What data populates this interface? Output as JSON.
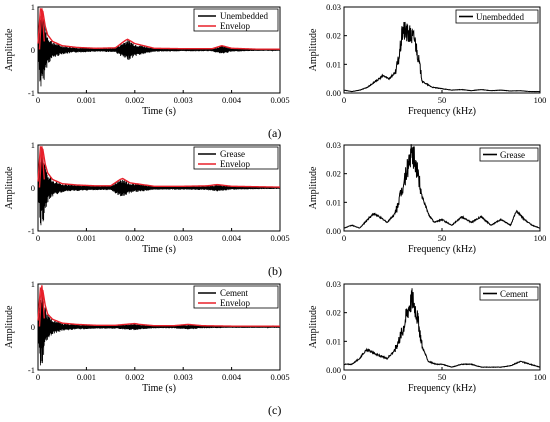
{
  "captions": [
    "(a)",
    "(b)",
    "(c)"
  ],
  "colors": {
    "signal": "#000000",
    "envelope": "#e8202a",
    "axis": "#000000"
  },
  "chart_data": [
    {
      "type": "line",
      "panel": "a-time",
      "xlabel": "Time (s)",
      "ylabel": "Amplitude",
      "xlim": [
        0,
        0.005
      ],
      "ylim": [
        -1,
        1
      ],
      "xticks": [
        "0",
        "0.001",
        "0.002",
        "0.003",
        "0.004",
        "0.005"
      ],
      "yticks": [
        "-1",
        "0",
        "1"
      ],
      "legend": {
        "placement": "top-right"
      },
      "series": [
        {
          "name": "Unembedded",
          "role": "signal",
          "x": [
            0,
            5e-05,
            0.0001,
            0.00015,
            0.0002,
            0.0003,
            0.0005,
            0.0008,
            0.0012,
            0.0016,
            0.0018,
            0.00185,
            0.002,
            0.0024,
            0.003,
            0.0036,
            0.0038,
            0.004,
            0.0045,
            0.005
          ],
          "y": [
            0.15,
            0.95,
            0.9,
            0.55,
            0.35,
            0.2,
            0.1,
            0.06,
            0.04,
            0.05,
            0.22,
            0.25,
            0.15,
            0.04,
            0.03,
            0.03,
            0.1,
            0.04,
            0.02,
            0.02
          ]
        },
        {
          "name": "Envelop",
          "role": "envelope",
          "x": [
            0,
            5e-05,
            0.0001,
            0.00015,
            0.0002,
            0.0003,
            0.0005,
            0.0008,
            0.0012,
            0.0016,
            0.0018,
            0.00185,
            0.002,
            0.0024,
            0.003,
            0.0036,
            0.0038,
            0.004,
            0.0045,
            0.005
          ],
          "y": [
            0.15,
            0.95,
            0.9,
            0.55,
            0.35,
            0.2,
            0.1,
            0.06,
            0.04,
            0.05,
            0.22,
            0.25,
            0.15,
            0.04,
            0.03,
            0.03,
            0.1,
            0.04,
            0.02,
            0.02
          ]
        }
      ]
    },
    {
      "type": "line",
      "panel": "a-freq",
      "xlabel": "Frequency (kHz)",
      "ylabel": "Amplitude",
      "xlim": [
        0,
        100
      ],
      "ylim": [
        0,
        0.03
      ],
      "xticks": [
        "0",
        "50",
        "100"
      ],
      "yticks": [
        "0.00",
        "0.01",
        "0.02",
        "0.03"
      ],
      "legend": {
        "placement": "top-right"
      },
      "series": [
        {
          "name": "Unembedded",
          "x": [
            0,
            4,
            8,
            12,
            16,
            20,
            23,
            26,
            28,
            30,
            32,
            34,
            36,
            38,
            40,
            45,
            50,
            55,
            60,
            65,
            70,
            75,
            80,
            85,
            90,
            95,
            100
          ],
          "y": [
            0.001,
            0.0005,
            0.001,
            0.002,
            0.004,
            0.006,
            0.005,
            0.007,
            0.012,
            0.022,
            0.021,
            0.02,
            0.019,
            0.012,
            0.004,
            0.002,
            0.0015,
            0.001,
            0.0012,
            0.0008,
            0.0012,
            0.0008,
            0.001,
            0.0007,
            0.0008,
            0.0005,
            0.0005
          ]
        }
      ]
    },
    {
      "type": "line",
      "panel": "b-time",
      "xlabel": "Time (s)",
      "ylabel": "Amplitude",
      "xlim": [
        0,
        0.005
      ],
      "ylim": [
        -1,
        1
      ],
      "xticks": [
        "0",
        "0.001",
        "0.002",
        "0.003",
        "0.004",
        "0.005"
      ],
      "yticks": [
        "-1",
        "0",
        "1"
      ],
      "legend": {
        "placement": "top-right"
      },
      "series": [
        {
          "name": "Grease",
          "role": "signal",
          "x": [
            0,
            5e-05,
            0.0001,
            0.00015,
            0.0002,
            0.0003,
            0.0005,
            0.0008,
            0.0012,
            0.0015,
            0.0017,
            0.00175,
            0.0019,
            0.0024,
            0.003,
            0.0035,
            0.0037,
            0.004,
            0.0045,
            0.005
          ],
          "y": [
            0.15,
            0.95,
            0.9,
            0.55,
            0.35,
            0.2,
            0.1,
            0.07,
            0.05,
            0.05,
            0.2,
            0.22,
            0.12,
            0.04,
            0.04,
            0.05,
            0.08,
            0.04,
            0.03,
            0.02
          ]
        },
        {
          "name": "Envelop",
          "role": "envelope",
          "x": [
            0,
            5e-05,
            0.0001,
            0.00015,
            0.0002,
            0.0003,
            0.0005,
            0.0008,
            0.0012,
            0.0015,
            0.0017,
            0.00175,
            0.0019,
            0.0024,
            0.003,
            0.0035,
            0.0037,
            0.004,
            0.0045,
            0.005
          ],
          "y": [
            0.15,
            0.95,
            0.9,
            0.55,
            0.35,
            0.2,
            0.1,
            0.07,
            0.05,
            0.05,
            0.2,
            0.22,
            0.12,
            0.04,
            0.04,
            0.05,
            0.08,
            0.04,
            0.03,
            0.02
          ]
        }
      ]
    },
    {
      "type": "line",
      "panel": "b-freq",
      "xlabel": "Frequency (kHz)",
      "ylabel": "Amplitude",
      "xlim": [
        0,
        100
      ],
      "ylim": [
        0,
        0.03
      ],
      "xticks": [
        "0",
        "50",
        "100"
      ],
      "yticks": [
        "0.00",
        "0.01",
        "0.02",
        "0.03"
      ],
      "legend": {
        "placement": "top-right"
      },
      "series": [
        {
          "name": "Grease",
          "x": [
            0,
            4,
            8,
            12,
            15,
            18,
            22,
            26,
            30,
            33,
            35,
            37,
            40,
            43,
            46,
            50,
            55,
            60,
            65,
            70,
            75,
            80,
            85,
            88,
            92,
            96,
            100
          ],
          "y": [
            0.001,
            0.002,
            0.001,
            0.004,
            0.006,
            0.005,
            0.003,
            0.006,
            0.015,
            0.024,
            0.027,
            0.022,
            0.012,
            0.006,
            0.003,
            0.004,
            0.002,
            0.005,
            0.003,
            0.005,
            0.002,
            0.004,
            0.002,
            0.007,
            0.004,
            0.002,
            0.001
          ]
        }
      ]
    },
    {
      "type": "line",
      "panel": "c-time",
      "xlabel": "Time (s)",
      "ylabel": "Amplitude",
      "xlim": [
        0,
        0.005
      ],
      "ylim": [
        -1,
        1
      ],
      "xticks": [
        "0",
        "0.001",
        "0.002",
        "0.003",
        "0.004",
        "0.005"
      ],
      "yticks": [
        "-1",
        "0",
        "1"
      ],
      "legend": {
        "placement": "top-right"
      },
      "series": [
        {
          "name": "Cement",
          "role": "signal",
          "x": [
            0,
            5e-05,
            0.0001,
            0.00015,
            0.0002,
            0.0003,
            0.0005,
            0.0008,
            0.0012,
            0.0016,
            0.0019,
            0.002,
            0.0021,
            0.0024,
            0.0028,
            0.0031,
            0.0034,
            0.004,
            0.0045,
            0.005
          ],
          "y": [
            0.15,
            0.9,
            0.85,
            0.5,
            0.3,
            0.18,
            0.09,
            0.06,
            0.04,
            0.04,
            0.07,
            0.08,
            0.06,
            0.03,
            0.03,
            0.06,
            0.03,
            0.02,
            0.02,
            0.02
          ]
        },
        {
          "name": "Envelop",
          "role": "envelope",
          "x": [
            0,
            5e-05,
            0.0001,
            0.00015,
            0.0002,
            0.0003,
            0.0005,
            0.0008,
            0.0012,
            0.0016,
            0.0019,
            0.002,
            0.0021,
            0.0024,
            0.0028,
            0.0031,
            0.0034,
            0.004,
            0.0045,
            0.005
          ],
          "y": [
            0.15,
            0.9,
            0.85,
            0.5,
            0.3,
            0.18,
            0.09,
            0.06,
            0.04,
            0.04,
            0.07,
            0.08,
            0.06,
            0.03,
            0.03,
            0.06,
            0.03,
            0.02,
            0.02,
            0.02
          ]
        }
      ]
    },
    {
      "type": "line",
      "panel": "c-freq",
      "xlabel": "Frequency (kHz)",
      "ylabel": "Amplitude",
      "xlim": [
        0,
        100
      ],
      "ylim": [
        0,
        0.03
      ],
      "xticks": [
        "0",
        "50",
        "100"
      ],
      "yticks": [
        "0.00",
        "0.01",
        "0.02",
        "0.03"
      ],
      "legend": {
        "placement": "top-right"
      },
      "series": [
        {
          "name": "Cement",
          "x": [
            0,
            4,
            8,
            10,
            12,
            15,
            18,
            22,
            26,
            30,
            33,
            35,
            37,
            40,
            43,
            47,
            50,
            55,
            60,
            65,
            70,
            75,
            80,
            85,
            90,
            95,
            100
          ],
          "y": [
            0.002,
            0.002,
            0.004,
            0.006,
            0.007,
            0.006,
            0.005,
            0.004,
            0.007,
            0.014,
            0.022,
            0.025,
            0.02,
            0.008,
            0.003,
            0.002,
            0.002,
            0.001,
            0.002,
            0.002,
            0.001,
            0.001,
            0.001,
            0.0015,
            0.003,
            0.002,
            0.001
          ]
        }
      ]
    }
  ]
}
